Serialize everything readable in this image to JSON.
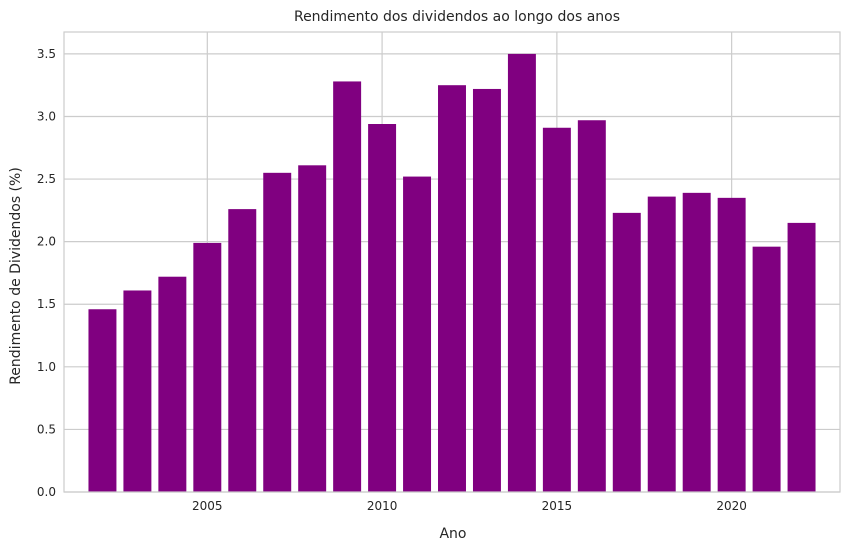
{
  "chart_data": {
    "type": "bar",
    "title": "Rendimento dos dividendos ao longo dos anos",
    "xlabel": "Ano",
    "ylabel": "Rendimento de Dividendos (%)",
    "x": [
      2002,
      2003,
      2004,
      2005,
      2006,
      2007,
      2008,
      2009,
      2010,
      2011,
      2012,
      2013,
      2014,
      2015,
      2016,
      2017,
      2018,
      2019,
      2020,
      2021,
      2022
    ],
    "values": [
      1.46,
      1.61,
      1.72,
      1.99,
      2.26,
      2.55,
      2.61,
      3.28,
      2.94,
      2.52,
      3.25,
      3.22,
      3.5,
      2.91,
      2.97,
      2.23,
      2.36,
      2.39,
      2.35,
      1.96,
      2.15
    ],
    "xlim": [
      2000.9,
      2023.1
    ],
    "ylim": [
      0,
      3.675
    ],
    "xticks": [
      2005,
      2010,
      2015,
      2020
    ],
    "yticks": [
      0.0,
      0.5,
      1.0,
      1.5,
      2.0,
      2.5,
      3.0,
      3.5
    ],
    "xtick_labels": [
      "2005",
      "2010",
      "2015",
      "2020"
    ],
    "ytick_labels": [
      "0.0",
      "0.5",
      "1.0",
      "1.5",
      "2.0",
      "2.5",
      "3.0",
      "3.5"
    ],
    "bar_width": 0.8,
    "bar_color": "#800080",
    "grid": true,
    "background": "#ffffff"
  }
}
